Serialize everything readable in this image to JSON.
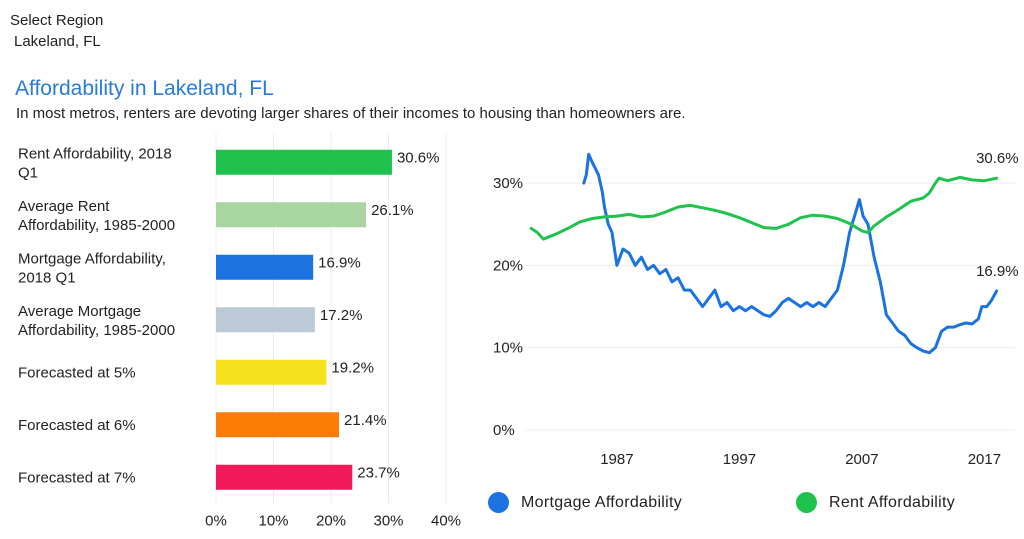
{
  "header": {
    "select_label": "Select Region",
    "select_value": "Lakeland, FL",
    "title": "Affordability in Lakeland, FL",
    "subtitle": "In most metros, renters are devoting larger shares of their incomes to housing than homeowners are."
  },
  "chart_data": [
    {
      "type": "bar",
      "orientation": "horizontal",
      "categories": [
        [
          "Rent Affordability, 2018",
          "Q1"
        ],
        [
          "Average Rent",
          "Affordability, 1985-2000"
        ],
        [
          "Mortgage Affordability,",
          "2018 Q1"
        ],
        [
          "Average Mortgage",
          "Affordability, 1985-2000"
        ],
        [
          "Forecasted at 5%"
        ],
        [
          "Forecasted at 6%"
        ],
        [
          "Forecasted at 7%"
        ]
      ],
      "values": [
        30.6,
        26.1,
        16.9,
        17.2,
        19.2,
        21.4,
        23.7
      ],
      "value_labels": [
        "30.6%",
        "26.1%",
        "16.9%",
        "17.2%",
        "19.2%",
        "21.4%",
        "23.7%"
      ],
      "colors": [
        "#1ec24c",
        "#a8d5a0",
        "#1a73e0",
        "#bccad8",
        "#f7e01c",
        "#fb7d08",
        "#f2185a"
      ],
      "xlim": [
        0,
        40
      ],
      "xticks": [
        0,
        10,
        20,
        30,
        40
      ],
      "xtick_labels": [
        "0%",
        "10%",
        "20%",
        "30%",
        "40%"
      ],
      "grid": true
    },
    {
      "type": "line",
      "ylim": [
        0,
        35
      ],
      "yticks": [
        0,
        10,
        20,
        30
      ],
      "ytick_labels": [
        "0%",
        "10%",
        "20%",
        "30%"
      ],
      "xlim": [
        1979.5,
        2019.5
      ],
      "xticks": [
        1987,
        1997,
        2007,
        2017
      ],
      "xtick_labels": [
        "1987",
        "1997",
        "2007",
        "2017"
      ],
      "grid": true,
      "legend_position": "bottom",
      "series": [
        {
          "name": "Mortgage Affordability",
          "color": "#1a73e0",
          "end_label": "16.9%",
          "points": [
            [
              1984.3,
              30
            ],
            [
              1984.5,
              31
            ],
            [
              1984.7,
              33.5
            ],
            [
              1985,
              32.5
            ],
            [
              1985.5,
              31
            ],
            [
              1985.8,
              29
            ],
            [
              1986,
              27
            ],
            [
              1986.3,
              25
            ],
            [
              1986.6,
              24
            ],
            [
              1987,
              20
            ],
            [
              1987.5,
              22
            ],
            [
              1988,
              21.5
            ],
            [
              1988.5,
              20
            ],
            [
              1989,
              21
            ],
            [
              1989.5,
              19.5
            ],
            [
              1990,
              20
            ],
            [
              1990.5,
              19
            ],
            [
              1991,
              19.5
            ],
            [
              1991.5,
              18
            ],
            [
              1992,
              18.5
            ],
            [
              1992.5,
              17
            ],
            [
              1993,
              17
            ],
            [
              1993.5,
              16
            ],
            [
              1994,
              15
            ],
            [
              1994.5,
              16
            ],
            [
              1995,
              17
            ],
            [
              1995.5,
              15
            ],
            [
              1996,
              15.5
            ],
            [
              1996.5,
              14.5
            ],
            [
              1997,
              15
            ],
            [
              1997.5,
              14.5
            ],
            [
              1998,
              15
            ],
            [
              1998.5,
              14.5
            ],
            [
              1999,
              14
            ],
            [
              1999.5,
              13.8
            ],
            [
              2000,
              14.5
            ],
            [
              2000.5,
              15.5
            ],
            [
              2001,
              16
            ],
            [
              2001.5,
              15.5
            ],
            [
              2002,
              15
            ],
            [
              2002.5,
              15.5
            ],
            [
              2003,
              15
            ],
            [
              2003.5,
              15.5
            ],
            [
              2004,
              15
            ],
            [
              2004.5,
              16
            ],
            [
              2005,
              17
            ],
            [
              2005.5,
              20
            ],
            [
              2006,
              24
            ],
            [
              2006.5,
              26.5
            ],
            [
              2006.8,
              28
            ],
            [
              2007.1,
              26
            ],
            [
              2007.5,
              25
            ],
            [
              2008,
              21
            ],
            [
              2008.5,
              18
            ],
            [
              2009,
              14
            ],
            [
              2009.5,
              13
            ],
            [
              2010,
              12
            ],
            [
              2010.5,
              11.5
            ],
            [
              2011,
              10.5
            ],
            [
              2011.5,
              10
            ],
            [
              2012,
              9.6
            ],
            [
              2012.5,
              9.4
            ],
            [
              2013,
              10
            ],
            [
              2013.5,
              12
            ],
            [
              2014,
              12.5
            ],
            [
              2014.5,
              12.5
            ],
            [
              2015,
              12.8
            ],
            [
              2015.5,
              13
            ],
            [
              2016,
              12.9
            ],
            [
              2016.5,
              13.5
            ],
            [
              2016.8,
              15
            ],
            [
              2017.2,
              15
            ],
            [
              2017.6,
              15.8
            ],
            [
              2018,
              16.9
            ]
          ]
        },
        {
          "name": "Rent Affordability",
          "color": "#1ec24c",
          "end_label": "30.6%",
          "points": [
            [
              1980,
              24.5
            ],
            [
              1980.5,
              24
            ],
            [
              1981,
              23.2
            ],
            [
              1982,
              23.8
            ],
            [
              1983,
              24.5
            ],
            [
              1984,
              25.3
            ],
            [
              1985,
              25.7
            ],
            [
              1986,
              25.9
            ],
            [
              1987,
              26
            ],
            [
              1988,
              26.2
            ],
            [
              1989,
              25.9
            ],
            [
              1990,
              26
            ],
            [
              1991,
              26.5
            ],
            [
              1992,
              27.1
            ],
            [
              1993,
              27.3
            ],
            [
              1994,
              27
            ],
            [
              1995,
              26.7
            ],
            [
              1996,
              26.3
            ],
            [
              1997,
              25.8
            ],
            [
              1998,
              25.2
            ],
            [
              1999,
              24.6
            ],
            [
              2000,
              24.5
            ],
            [
              2001,
              25
            ],
            [
              2002,
              25.8
            ],
            [
              2003,
              26.1
            ],
            [
              2004,
              26
            ],
            [
              2005,
              25.7
            ],
            [
              2006,
              25.1
            ],
            [
              2007,
              24.2
            ],
            [
              2007.5,
              24
            ],
            [
              2008,
              24.8
            ],
            [
              2009,
              25.9
            ],
            [
              2010,
              26.8
            ],
            [
              2011,
              27.8
            ],
            [
              2012,
              28.2
            ],
            [
              2012.5,
              28.8
            ],
            [
              2013,
              30
            ],
            [
              2013.3,
              30.6
            ],
            [
              2014,
              30.3
            ],
            [
              2015,
              30.7
            ],
            [
              2016,
              30.4
            ],
            [
              2017,
              30.3
            ],
            [
              2018,
              30.6
            ]
          ]
        }
      ]
    }
  ]
}
